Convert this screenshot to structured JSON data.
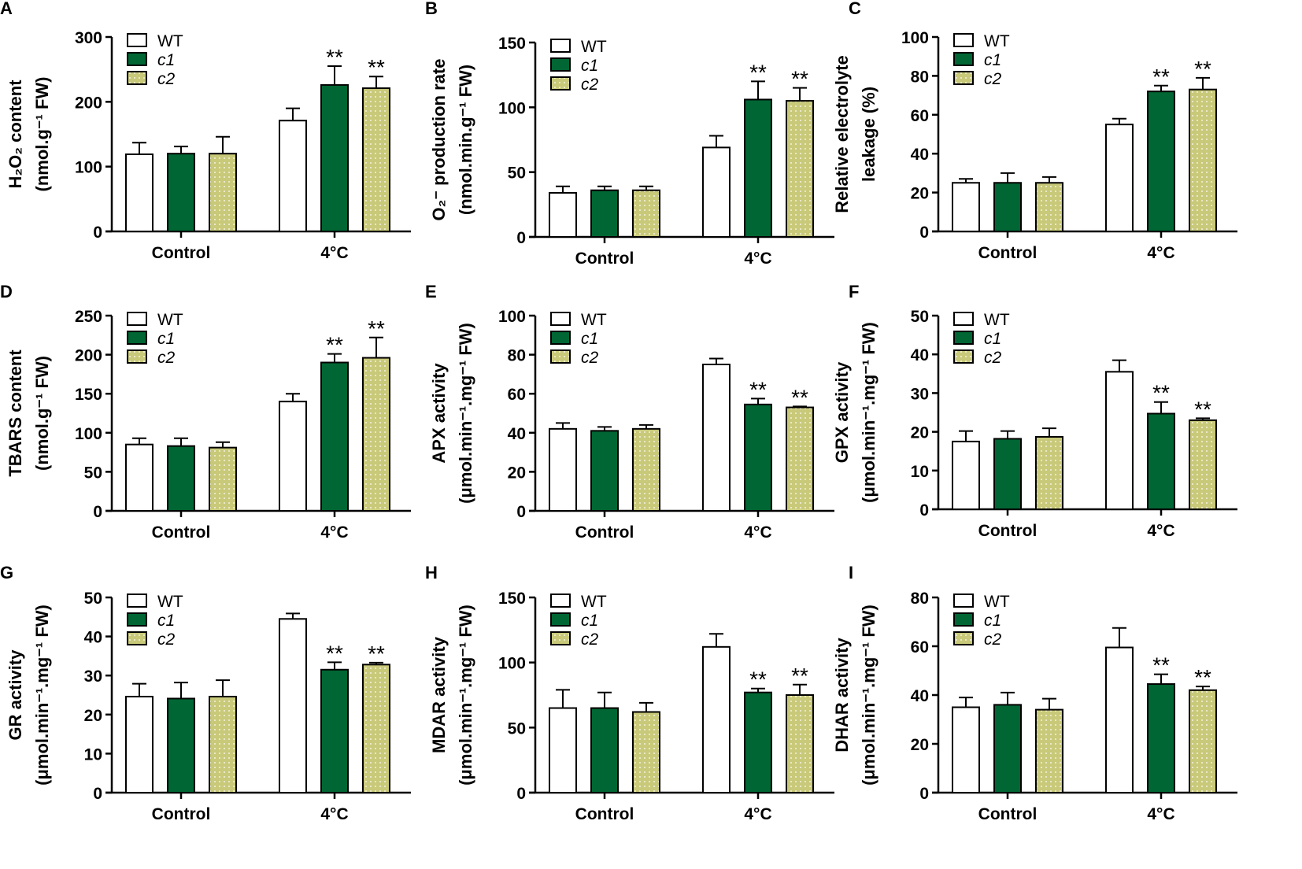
{
  "colors": {
    "WT": "#ffffff",
    "c1": "#006633",
    "c2": "#c9c97a",
    "axis": "#000000"
  },
  "chart_data": [
    {
      "panel": "A",
      "type": "bar",
      "categories": [
        "Control",
        "4°C"
      ],
      "ylabel": [
        "H₂O₂ content",
        "(nmol.g⁻¹ FW)"
      ],
      "ylim": [
        0,
        300
      ],
      "yticks": [
        0,
        100,
        200,
        300
      ],
      "legend": [
        "WT",
        "c1",
        "c2"
      ],
      "legend_position": "top-left",
      "series": [
        {
          "name": "WT",
          "values": [
            119,
            171
          ],
          "errors": [
            18,
            19
          ],
          "sig": [
            "",
            ""
          ]
        },
        {
          "name": "c1",
          "values": [
            120,
            226
          ],
          "errors": [
            11,
            29
          ],
          "sig": [
            "",
            "**"
          ]
        },
        {
          "name": "c2",
          "values": [
            120,
            221
          ],
          "errors": [
            26,
            18
          ],
          "sig": [
            "",
            "**"
          ]
        }
      ]
    },
    {
      "panel": "B",
      "type": "bar",
      "categories": [
        "Control",
        "4°C"
      ],
      "ylabel": [
        "O₂⁻ production rate",
        "(nmol.min.g⁻¹ FW)"
      ],
      "ylim": [
        0,
        150
      ],
      "yticks": [
        0,
        50,
        100,
        150
      ],
      "legend": [
        "WT",
        "c1",
        "c2"
      ],
      "legend_position": "top-left",
      "series": [
        {
          "name": "WT",
          "values": [
            34,
            69
          ],
          "errors": [
            5,
            9
          ],
          "sig": [
            "",
            ""
          ]
        },
        {
          "name": "c1",
          "values": [
            36,
            106
          ],
          "errors": [
            3,
            14
          ],
          "sig": [
            "",
            "**"
          ]
        },
        {
          "name": "c2",
          "values": [
            36,
            105
          ],
          "errors": [
            3,
            10
          ],
          "sig": [
            "",
            "**"
          ]
        }
      ]
    },
    {
      "panel": "C",
      "type": "bar",
      "categories": [
        "Control",
        "4°C"
      ],
      "ylabel": [
        "Relative electrolyte",
        "leakage (%)"
      ],
      "ylim": [
        0,
        100
      ],
      "yticks": [
        0,
        20,
        40,
        60,
        80,
        100
      ],
      "legend": [
        "WT",
        "c1",
        "c2"
      ],
      "legend_position": "top-left",
      "series": [
        {
          "name": "WT",
          "values": [
            25,
            55
          ],
          "errors": [
            2,
            3
          ],
          "sig": [
            "",
            ""
          ]
        },
        {
          "name": "c1",
          "values": [
            25,
            72
          ],
          "errors": [
            5,
            3
          ],
          "sig": [
            "",
            "**"
          ]
        },
        {
          "name": "c2",
          "values": [
            25,
            73
          ],
          "errors": [
            3,
            6
          ],
          "sig": [
            "",
            "**"
          ]
        }
      ]
    },
    {
      "panel": "D",
      "type": "bar",
      "categories": [
        "Control",
        "4°C"
      ],
      "ylabel": [
        "TBARS content",
        "(nmol.g⁻¹ FW)"
      ],
      "ylim": [
        0,
        250
      ],
      "yticks": [
        0,
        50,
        100,
        150,
        200,
        250
      ],
      "legend": [
        "WT",
        "c1",
        "c2"
      ],
      "legend_position": "top-left",
      "series": [
        {
          "name": "WT",
          "values": [
            85,
            140
          ],
          "errors": [
            8,
            10
          ],
          "sig": [
            "",
            ""
          ]
        },
        {
          "name": "c1",
          "values": [
            83,
            190
          ],
          "errors": [
            10,
            11
          ],
          "sig": [
            "",
            "**"
          ]
        },
        {
          "name": "c2",
          "values": [
            81,
            196
          ],
          "errors": [
            7,
            26
          ],
          "sig": [
            "",
            "**"
          ]
        }
      ]
    },
    {
      "panel": "E",
      "type": "bar",
      "categories": [
        "Control",
        "4°C"
      ],
      "ylabel": [
        "APX activity",
        "(μmol.min⁻¹.mg⁻¹ FW)"
      ],
      "ylim": [
        0,
        100
      ],
      "yticks": [
        0,
        20,
        40,
        60,
        80,
        100
      ],
      "legend": [
        "WT",
        "c1",
        "c2"
      ],
      "legend_position": "top-left",
      "series": [
        {
          "name": "WT",
          "values": [
            42,
            75
          ],
          "errors": [
            3,
            3
          ],
          "sig": [
            "",
            ""
          ]
        },
        {
          "name": "c1",
          "values": [
            41,
            54.5
          ],
          "errors": [
            2,
            3
          ],
          "sig": [
            "",
            "**"
          ]
        },
        {
          "name": "c2",
          "values": [
            42,
            53
          ],
          "errors": [
            2,
            0.5
          ],
          "sig": [
            "",
            "**"
          ]
        }
      ]
    },
    {
      "panel": "F",
      "type": "bar",
      "categories": [
        "Control",
        "4°C"
      ],
      "ylabel": [
        "GPX activity",
        "(μmol.min⁻¹.mg⁻¹ FW)"
      ],
      "ylim": [
        0,
        50
      ],
      "yticks": [
        0,
        10,
        20,
        30,
        40,
        50
      ],
      "legend": [
        "WT",
        "c1",
        "c2"
      ],
      "legend_position": "top-left",
      "series": [
        {
          "name": "WT",
          "values": [
            17.5,
            35.5
          ],
          "errors": [
            2.7,
            3
          ],
          "sig": [
            "",
            ""
          ]
        },
        {
          "name": "c1",
          "values": [
            18.2,
            24.7
          ],
          "errors": [
            2,
            3
          ],
          "sig": [
            "",
            "**"
          ]
        },
        {
          "name": "c2",
          "values": [
            18.7,
            23
          ],
          "errors": [
            2.2,
            0.5
          ],
          "sig": [
            "",
            "**"
          ]
        }
      ]
    },
    {
      "panel": "G",
      "type": "bar",
      "categories": [
        "Control",
        "4°C"
      ],
      "ylabel": [
        "GR activity",
        "(μmol.min⁻¹.mg⁻¹ FW)"
      ],
      "ylim": [
        0,
        50
      ],
      "yticks": [
        0,
        10,
        20,
        30,
        40,
        50
      ],
      "legend": [
        "WT",
        "c1",
        "c2"
      ],
      "legend_position": "top-left",
      "series": [
        {
          "name": "WT",
          "values": [
            24.6,
            44.5
          ],
          "errors": [
            3.3,
            1.4
          ],
          "sig": [
            "",
            ""
          ]
        },
        {
          "name": "c1",
          "values": [
            24.1,
            31.5
          ],
          "errors": [
            4.1,
            1.9
          ],
          "sig": [
            "",
            "**"
          ]
        },
        {
          "name": "c2",
          "values": [
            24.6,
            32.8
          ],
          "errors": [
            4.2,
            0.5
          ],
          "sig": [
            "",
            "**"
          ]
        }
      ]
    },
    {
      "panel": "H",
      "type": "bar",
      "categories": [
        "Control",
        "4°C"
      ],
      "ylabel": [
        "MDAR activity",
        "(μmol.min⁻¹.mg⁻¹ FW)"
      ],
      "ylim": [
        0,
        150
      ],
      "yticks": [
        0,
        50,
        100,
        150
      ],
      "legend": [
        "WT",
        "c1",
        "c2"
      ],
      "legend_position": "top-left",
      "series": [
        {
          "name": "WT",
          "values": [
            65,
            112
          ],
          "errors": [
            14,
            10
          ],
          "sig": [
            "",
            ""
          ]
        },
        {
          "name": "c1",
          "values": [
            65,
            77
          ],
          "errors": [
            12,
            3
          ],
          "sig": [
            "",
            "**"
          ]
        },
        {
          "name": "c2",
          "values": [
            62,
            75
          ],
          "errors": [
            7,
            8
          ],
          "sig": [
            "",
            "**"
          ]
        }
      ]
    },
    {
      "panel": "I",
      "type": "bar",
      "categories": [
        "Control",
        "4°C"
      ],
      "ylabel": [
        "DHAR activity",
        "(μmol.min⁻¹.mg⁻¹ FW)"
      ],
      "ylim": [
        0,
        80
      ],
      "yticks": [
        0,
        20,
        40,
        60,
        80
      ],
      "legend": [
        "WT",
        "c1",
        "c2"
      ],
      "legend_position": "top-left",
      "series": [
        {
          "name": "WT",
          "values": [
            35,
            59.5
          ],
          "errors": [
            4,
            8
          ],
          "sig": [
            "",
            ""
          ]
        },
        {
          "name": "c1",
          "values": [
            36,
            44.5
          ],
          "errors": [
            5,
            4
          ],
          "sig": [
            "",
            "**"
          ]
        },
        {
          "name": "c2",
          "values": [
            34,
            42
          ],
          "errors": [
            4.5,
            1.5
          ],
          "sig": [
            "",
            "**"
          ]
        }
      ]
    }
  ]
}
